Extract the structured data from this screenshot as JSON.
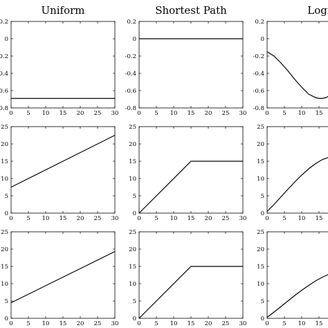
{
  "chart_data": [
    {
      "type": "line",
      "title": "Uniform",
      "xlim": [
        0,
        30
      ],
      "ylim": [
        -0.8,
        0.2
      ],
      "xticks": [
        "0",
        "5",
        "10",
        "15",
        "20",
        "25",
        "30"
      ],
      "yticks": [
        "-0.8",
        "-0.6",
        "-0.4",
        "-0.2",
        "0",
        "0.2"
      ],
      "series": [
        {
          "x": [
            0,
            30
          ],
          "y": [
            -0.69,
            -0.69
          ]
        }
      ]
    },
    {
      "type": "line",
      "title": "Shortest Path",
      "xlim": [
        0,
        30
      ],
      "ylim": [
        -0.8,
        0.2
      ],
      "xticks": [
        "0",
        "5",
        "10",
        "15",
        "20",
        "25",
        "30"
      ],
      "yticks": [
        "-0.8",
        "-0.6",
        "-0.4",
        "-0.2",
        "0",
        "0.2"
      ],
      "series": [
        {
          "x": [
            0,
            30
          ],
          "y": [
            0,
            0
          ]
        }
      ]
    },
    {
      "type": "line",
      "title": "Logi",
      "xlim": [
        0,
        30
      ],
      "ylim": [
        -0.8,
        0.2
      ],
      "xticks": [
        "0",
        "5",
        "10",
        "15"
      ],
      "yticks": [
        "-0.8",
        "-0.6",
        "-0.4",
        "-0.2",
        "0",
        "0.2"
      ],
      "series": [
        {
          "x": [
            0,
            2,
            4,
            6,
            8,
            10,
            12,
            14,
            15,
            16,
            17,
            18
          ],
          "y": [
            -0.15,
            -0.2,
            -0.28,
            -0.37,
            -0.47,
            -0.56,
            -0.64,
            -0.68,
            -0.69,
            -0.69,
            -0.68,
            -0.66
          ]
        }
      ]
    },
    {
      "type": "line",
      "xlim": [
        0,
        30
      ],
      "ylim": [
        0,
        25
      ],
      "xticks": [
        "0",
        "5",
        "10",
        "15",
        "20",
        "25",
        "30"
      ],
      "yticks": [
        "0",
        "5",
        "10",
        "15",
        "20",
        "25"
      ],
      "series": [
        {
          "x": [
            0,
            30
          ],
          "y": [
            7.5,
            22.5
          ]
        }
      ]
    },
    {
      "type": "line",
      "xlim": [
        0,
        30
      ],
      "ylim": [
        0,
        25
      ],
      "xticks": [
        "0",
        "5",
        "10",
        "15",
        "20",
        "25",
        "30"
      ],
      "yticks": [
        "0",
        "5",
        "10",
        "15",
        "20",
        "25"
      ],
      "series": [
        {
          "x": [
            0,
            15,
            30
          ],
          "y": [
            0,
            15,
            15
          ]
        }
      ]
    },
    {
      "type": "line",
      "xlim": [
        0,
        30
      ],
      "ylim": [
        0,
        25
      ],
      "xticks": [
        "0",
        "5",
        "10",
        "15"
      ],
      "yticks": [
        "0",
        "5",
        "10",
        "15",
        "20",
        "25"
      ],
      "series": [
        {
          "x": [
            0,
            2,
            4,
            6,
            8,
            10,
            12,
            14,
            16,
            18
          ],
          "y": [
            0.5,
            2.5,
            4.7,
            6.9,
            9.0,
            11.0,
            12.8,
            14.3,
            15.5,
            16.2
          ]
        }
      ]
    },
    {
      "type": "line",
      "xlim": [
        0,
        30
      ],
      "ylim": [
        0,
        25
      ],
      "xticks": [
        "0",
        "5",
        "10",
        "15",
        "20",
        "25",
        "30"
      ],
      "yticks": [
        "0",
        "5",
        "10",
        "15",
        "20",
        "25"
      ],
      "series": [
        {
          "x": [
            0,
            30
          ],
          "y": [
            4.5,
            19.3
          ]
        }
      ]
    },
    {
      "type": "line",
      "xlim": [
        0,
        30
      ],
      "ylim": [
        0,
        25
      ],
      "xticks": [
        "0",
        "5",
        "10",
        "15",
        "20",
        "25",
        "30"
      ],
      "yticks": [
        "0",
        "5",
        "10",
        "15",
        "20",
        "25"
      ],
      "series": [
        {
          "x": [
            0,
            15,
            30
          ],
          "y": [
            0,
            15,
            15
          ]
        }
      ]
    },
    {
      "type": "line",
      "xlim": [
        0,
        30
      ],
      "ylim": [
        0,
        25
      ],
      "xticks": [
        "0",
        "5",
        "10",
        "15"
      ],
      "yticks": [
        "0",
        "5",
        "10",
        "15",
        "20",
        "25"
      ],
      "series": [
        {
          "x": [
            0,
            2,
            4,
            6,
            8,
            10,
            12,
            14,
            16,
            18
          ],
          "y": [
            0.3,
            1.8,
            3.4,
            5.0,
            6.6,
            8.1,
            9.5,
            10.8,
            11.9,
            12.8
          ]
        }
      ]
    }
  ]
}
